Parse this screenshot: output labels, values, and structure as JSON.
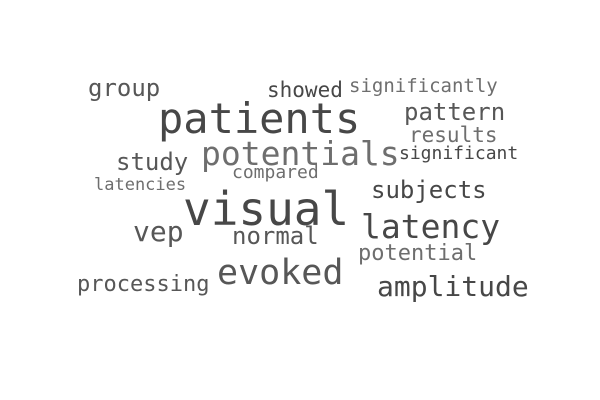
{
  "words": {
    "patients": {
      "text": "patients",
      "color": "#474747"
    },
    "visual": {
      "text": "visual",
      "color": "#474747"
    },
    "potentials": {
      "text": "potentials",
      "color": "#6e6e6e"
    },
    "evoked": {
      "text": "evoked",
      "color": "#575757"
    },
    "latency": {
      "text": "latency",
      "color": "#474747"
    },
    "amplitude": {
      "text": "amplitude",
      "color": "#474747"
    },
    "vep": {
      "text": "vep",
      "color": "#575757"
    },
    "pattern": {
      "text": "pattern",
      "color": "#575757"
    },
    "subjects": {
      "text": "subjects",
      "color": "#474747"
    },
    "normal": {
      "text": "normal",
      "color": "#575757"
    },
    "study": {
      "text": "study",
      "color": "#575757"
    },
    "group": {
      "text": "group",
      "color": "#575757"
    },
    "processing": {
      "text": "processing",
      "color": "#575757"
    },
    "potential": {
      "text": "potential",
      "color": "#6e6e6e"
    },
    "results": {
      "text": "results",
      "color": "#6e6e6e"
    },
    "showed": {
      "text": "showed",
      "color": "#474747"
    },
    "significantly": {
      "text": "significantly",
      "color": "#6e6e6e"
    },
    "significant": {
      "text": "significant",
      "color": "#474747"
    },
    "compared": {
      "text": "compared",
      "color": "#6e6e6e"
    },
    "latencies": {
      "text": "latencies",
      "color": "#6e6e6e"
    }
  }
}
